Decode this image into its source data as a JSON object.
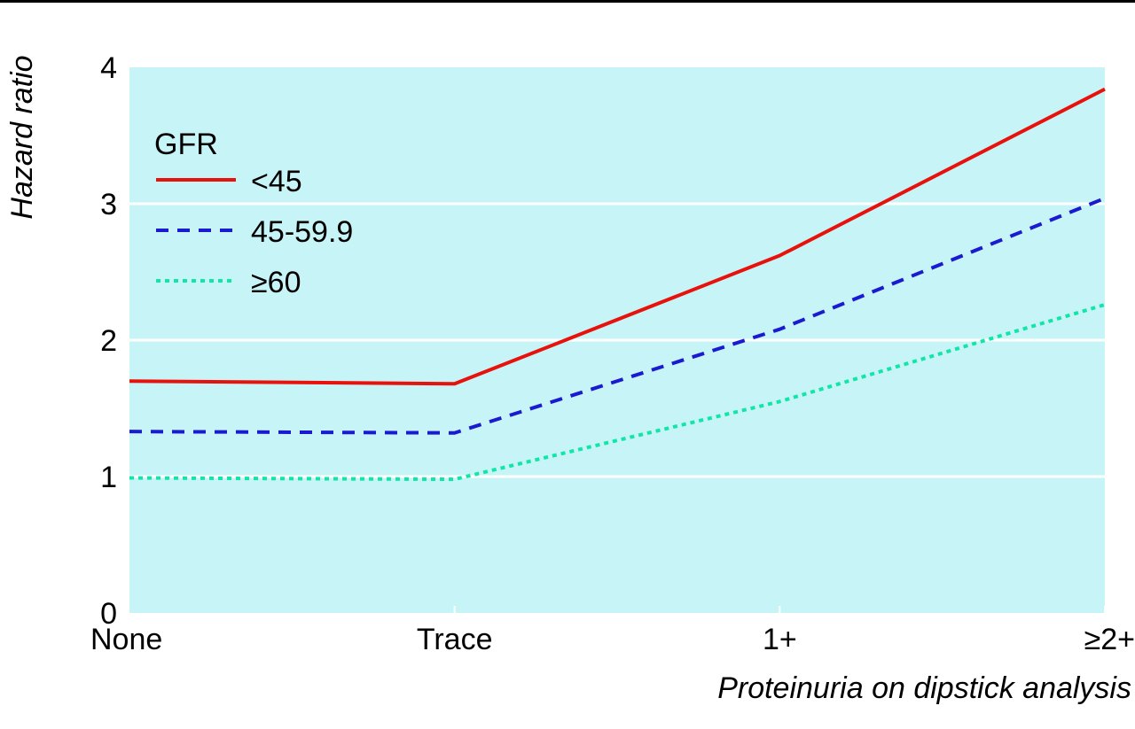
{
  "chart_data": {
    "type": "line",
    "categories": [
      "None",
      "Trace",
      "1+",
      "≥2+"
    ],
    "ylim": [
      0,
      4
    ],
    "yticks": [
      "0",
      "1",
      "2",
      "3",
      "4"
    ],
    "xlabel": "Proteinuria on dipstick analysis",
    "ylabel": "Hazard ratio",
    "grid": "horizontal",
    "legend_position": "top-left",
    "legend_title": "GFR",
    "plot_background": "#c7f4f6",
    "series": [
      {
        "name": "<45",
        "values": [
          1.7,
          1.68,
          2.62,
          3.84
        ],
        "color": "#e8120c",
        "style": "solid"
      },
      {
        "name": "45-59.9",
        "values": [
          1.33,
          1.32,
          2.08,
          3.04
        ],
        "color": "#1a1ad0",
        "style": "dashed"
      },
      {
        "name": "≥60",
        "values": [
          0.99,
          0.98,
          1.55,
          2.26
        ],
        "color": "#10e6a8",
        "style": "dotted"
      }
    ]
  }
}
